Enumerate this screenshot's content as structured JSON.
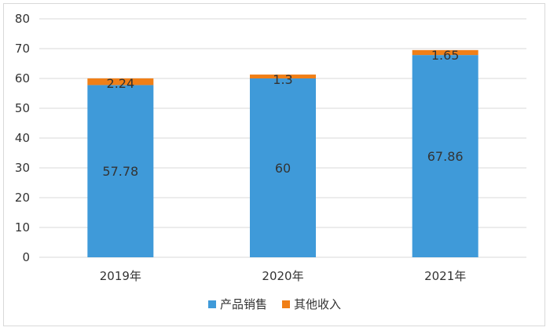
{
  "chart_data": {
    "type": "bar",
    "stacked": true,
    "categories": [
      "2019年",
      "2020年",
      "2021年"
    ],
    "series": [
      {
        "name": "产品销售",
        "values": [
          57.78,
          60,
          67.86
        ],
        "labels": [
          "57.78",
          "60",
          "67.86"
        ],
        "color": "#3f9ad9"
      },
      {
        "name": "其他收入",
        "values": [
          2.24,
          1.3,
          1.65
        ],
        "labels": [
          "2.24",
          "1.3",
          "1.65"
        ],
        "color": "#f07f17"
      }
    ],
    "title": "",
    "xlabel": "",
    "ylabel": "",
    "ylim": [
      0,
      80
    ],
    "yticks": [
      0,
      10,
      20,
      30,
      40,
      50,
      60,
      70,
      80
    ],
    "grid": true,
    "gridColor": "#d9d9d9",
    "legend": "bottom"
  }
}
